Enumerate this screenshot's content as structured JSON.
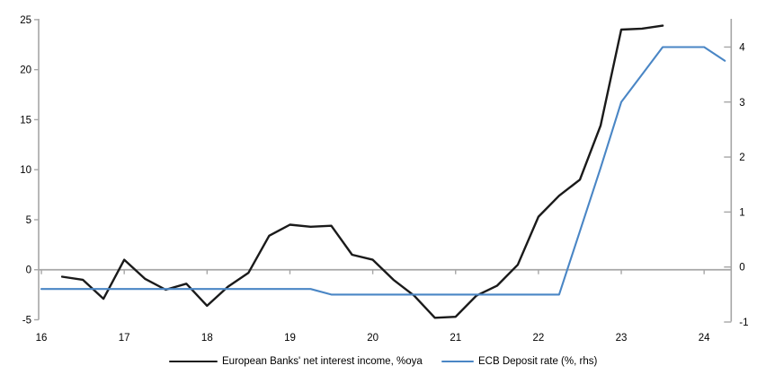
{
  "chart_data": {
    "type": "line",
    "title": "",
    "xlabel": "",
    "ylabel_left": "",
    "ylabel_right": "",
    "grid": false,
    "legend_position": "bottom",
    "x_axis": {
      "ticks": [
        16,
        17,
        18,
        19,
        20,
        21,
        22,
        23,
        24
      ],
      "range": [
        15.967,
        24.327
      ]
    },
    "left_axis": {
      "ticks": [
        25,
        20,
        15,
        10,
        5,
        0,
        -5
      ],
      "range": [
        -5.0,
        25.08
      ]
    },
    "right_axis": {
      "ticks": [
        4,
        3,
        2,
        1,
        0,
        -1
      ],
      "range": [
        -0.959,
        4.513
      ]
    },
    "series": [
      {
        "name": "European Banks' net interest income, %oya",
        "axis": "left",
        "color": "#1a1a1a",
        "width": 2.4,
        "x": [
          16.25,
          16.5,
          16.75,
          17.0,
          17.25,
          17.5,
          17.75,
          18.0,
          18.25,
          18.5,
          18.75,
          19.0,
          19.25,
          19.5,
          19.75,
          20.0,
          20.25,
          20.5,
          20.75,
          21.0,
          21.25,
          21.5,
          21.75,
          22.0,
          22.25,
          22.5,
          22.75,
          23.0,
          23.25,
          23.5
        ],
        "values": [
          -0.7,
          -1.0,
          -2.9,
          1.0,
          -0.9,
          -2.0,
          -1.4,
          -3.6,
          -1.7,
          -0.3,
          3.4,
          4.5,
          4.3,
          4.4,
          1.5,
          1.0,
          -1.0,
          -2.6,
          -4.8,
          -4.7,
          -2.6,
          -1.6,
          0.5,
          5.3,
          7.4,
          9.0,
          14.4,
          24.0,
          24.1,
          24.4
        ]
      },
      {
        "name": "ECB Deposit rate (%, rhs)",
        "axis": "right",
        "color": "#4a86c5",
        "width": 2.1,
        "x": [
          16.0,
          16.25,
          16.5,
          16.75,
          17.0,
          17.25,
          17.5,
          17.75,
          18.0,
          18.25,
          18.5,
          18.75,
          19.0,
          19.25,
          19.5,
          19.75,
          20.0,
          20.25,
          20.5,
          20.75,
          21.0,
          21.25,
          21.5,
          21.75,
          22.0,
          22.25,
          22.5,
          22.75,
          23.0,
          23.25,
          23.5,
          23.75,
          24.0,
          24.25
        ],
        "values": [
          -0.4,
          -0.4,
          -0.4,
          -0.4,
          -0.4,
          -0.4,
          -0.4,
          -0.4,
          -0.4,
          -0.4,
          -0.4,
          -0.4,
          -0.4,
          -0.4,
          -0.5,
          -0.5,
          -0.5,
          -0.5,
          -0.5,
          -0.5,
          -0.5,
          -0.5,
          -0.5,
          -0.5,
          -0.5,
          -0.5,
          0.65,
          1.8,
          3.0,
          3.5,
          4.0,
          4.0,
          4.0,
          3.75
        ]
      }
    ]
  },
  "legend": {
    "nii_label": "European Banks' net interest income, %oya",
    "ecb_label": "ECB Deposit rate (%, rhs)"
  },
  "colors": {
    "nii_line": "#1a1a1a",
    "ecb_line": "#4a86c5",
    "axis": "#a6a6a6",
    "tick_text": "#000000",
    "background": "#ffffff"
  }
}
